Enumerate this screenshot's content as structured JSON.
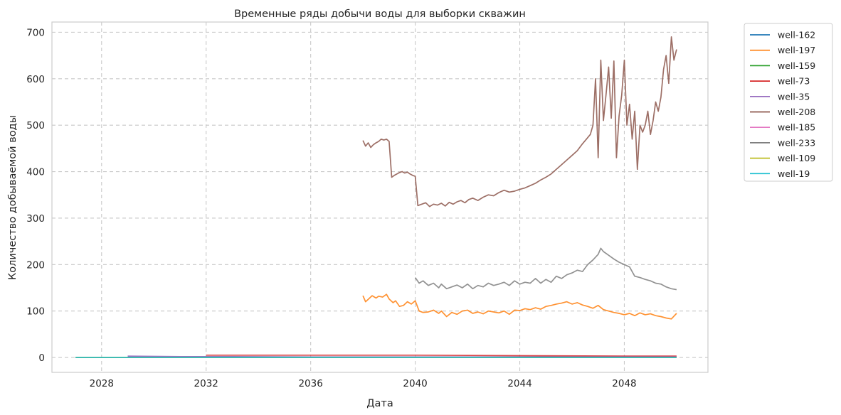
{
  "chart_data": {
    "type": "line",
    "title": "Временные ряды добычи воды для выборки скважин",
    "xlabel": "Дата",
    "ylabel": "Количество добываемой воды",
    "xlim": [
      2026.1,
      2051.2
    ],
    "ylim": [
      -32,
      722
    ],
    "x_ticks": [
      2028,
      2032,
      2036,
      2040,
      2044,
      2048
    ],
    "y_ticks": [
      0,
      100,
      200,
      300,
      400,
      500,
      600,
      700
    ],
    "grid": true,
    "legend_position": "outside-right",
    "series": [
      {
        "name": "well-162",
        "color": "#1f77b4",
        "x": [
          2029.0,
          2031.0,
          2033.0,
          2036.0,
          2040.0,
          2045.0,
          2050.0
        ],
        "y": [
          1,
          1,
          1,
          1,
          1,
          1,
          1
        ]
      },
      {
        "name": "well-197",
        "color": "#ff7f0e",
        "x": [
          2038.0,
          2038.1,
          2038.2,
          2038.35,
          2038.5,
          2038.6,
          2038.75,
          2038.9,
          2039.0,
          2039.15,
          2039.25,
          2039.4,
          2039.55,
          2039.7,
          2039.85,
          2040.0,
          2040.15,
          2040.3,
          2040.5,
          2040.7,
          2040.9,
          2041.0,
          2041.2,
          2041.4,
          2041.6,
          2041.8,
          2042.0,
          2042.2,
          2042.4,
          2042.6,
          2042.8,
          2043.0,
          2043.2,
          2043.4,
          2043.6,
          2043.8,
          2044.0,
          2044.2,
          2044.4,
          2044.6,
          2044.8,
          2045.0,
          2045.2,
          2045.4,
          2045.6,
          2045.8,
          2046.0,
          2046.2,
          2046.4,
          2046.6,
          2046.8,
          2047.0,
          2047.2,
          2047.4,
          2047.6,
          2047.8,
          2048.0,
          2048.2,
          2048.4,
          2048.6,
          2048.8,
          2049.0,
          2049.2,
          2049.4,
          2049.6,
          2049.8,
          2050.0
        ],
        "y": [
          133,
          120,
          125,
          133,
          128,
          132,
          130,
          136,
          126,
          118,
          122,
          110,
          112,
          120,
          115,
          122,
          100,
          97,
          98,
          102,
          95,
          100,
          88,
          97,
          93,
          100,
          102,
          95,
          98,
          94,
          100,
          98,
          96,
          100,
          93,
          102,
          101,
          105,
          103,
          107,
          104,
          110,
          112,
          115,
          117,
          120,
          115,
          118,
          113,
          110,
          106,
          112,
          103,
          100,
          97,
          95,
          92,
          95,
          90,
          96,
          92,
          94,
          90,
          88,
          85,
          83,
          95
        ]
      },
      {
        "name": "well-159",
        "color": "#2ca02c",
        "x": [
          2027.0,
          2030.0,
          2035.0,
          2040.0,
          2045.0,
          2050.0
        ],
        "y": [
          0,
          0,
          0,
          0,
          0,
          0
        ]
      },
      {
        "name": "well-73",
        "color": "#d62728",
        "x": [
          2032.0,
          2036.0,
          2040.0,
          2044.0,
          2048.0,
          2050.0
        ],
        "y": [
          5,
          5,
          5,
          4,
          3,
          3
        ]
      },
      {
        "name": "well-35",
        "color": "#9467bd",
        "x": [
          2029.0,
          2031.0,
          2033.0,
          2036.0,
          2040.0,
          2045.0,
          2050.0
        ],
        "y": [
          3,
          2,
          2,
          1,
          1,
          1,
          1
        ]
      },
      {
        "name": "well-208",
        "color": "#8c564b",
        "x": [
          2038.0,
          2038.1,
          2038.2,
          2038.3,
          2038.4,
          2038.5,
          2038.6,
          2038.7,
          2038.8,
          2038.9,
          2039.0,
          2039.1,
          2039.2,
          2039.3,
          2039.4,
          2039.5,
          2039.6,
          2039.7,
          2039.8,
          2039.9,
          2040.0,
          2040.1,
          2040.25,
          2040.4,
          2040.55,
          2040.7,
          2040.85,
          2041.0,
          2041.15,
          2041.3,
          2041.45,
          2041.6,
          2041.75,
          2041.9,
          2042.05,
          2042.2,
          2042.4,
          2042.6,
          2042.8,
          2043.0,
          2043.2,
          2043.4,
          2043.6,
          2043.8,
          2044.0,
          2044.2,
          2044.4,
          2044.6,
          2044.8,
          2045.0,
          2045.2,
          2045.4,
          2045.6,
          2045.8,
          2046.0,
          2046.2,
          2046.4,
          2046.55,
          2046.7,
          2046.8,
          2046.9,
          2047.0,
          2047.1,
          2047.2,
          2047.3,
          2047.4,
          2047.5,
          2047.6,
          2047.7,
          2047.8,
          2047.9,
          2048.0,
          2048.1,
          2048.2,
          2048.3,
          2048.4,
          2048.5,
          2048.6,
          2048.7,
          2048.8,
          2048.9,
          2049.0,
          2049.1,
          2049.2,
          2049.3,
          2049.4,
          2049.5,
          2049.6,
          2049.7,
          2049.8,
          2049.9,
          2050.0
        ],
        "y": [
          467,
          455,
          462,
          452,
          458,
          462,
          465,
          470,
          468,
          470,
          465,
          388,
          392,
          395,
          398,
          400,
          397,
          399,
          395,
          392,
          390,
          327,
          330,
          333,
          325,
          330,
          328,
          332,
          326,
          334,
          330,
          335,
          338,
          333,
          340,
          343,
          338,
          345,
          350,
          348,
          355,
          360,
          356,
          358,
          362,
          365,
          370,
          375,
          382,
          388,
          395,
          405,
          415,
          425,
          435,
          445,
          460,
          470,
          480,
          500,
          600,
          430,
          640,
          510,
          565,
          625,
          515,
          638,
          430,
          520,
          565,
          640,
          500,
          545,
          470,
          530,
          405,
          500,
          485,
          500,
          530,
          480,
          510,
          550,
          530,
          560,
          620,
          650,
          590,
          690,
          640,
          663
        ]
      },
      {
        "name": "well-185",
        "color": "#e377c2",
        "x": [
          2027.0,
          2030.0,
          2035.0,
          2040.0,
          2045.0,
          2050.0
        ],
        "y": [
          0,
          0,
          0,
          0,
          0,
          0
        ]
      },
      {
        "name": "well-233",
        "color": "#7f7f7f",
        "x": [
          2040.0,
          2040.15,
          2040.3,
          2040.5,
          2040.7,
          2040.9,
          2041.0,
          2041.2,
          2041.4,
          2041.6,
          2041.8,
          2042.0,
          2042.2,
          2042.4,
          2042.6,
          2042.8,
          2043.0,
          2043.2,
          2043.4,
          2043.6,
          2043.8,
          2044.0,
          2044.2,
          2044.4,
          2044.6,
          2044.8,
          2045.0,
          2045.2,
          2045.4,
          2045.6,
          2045.8,
          2046.0,
          2046.2,
          2046.4,
          2046.6,
          2046.8,
          2047.0,
          2047.1,
          2047.2,
          2047.4,
          2047.6,
          2047.8,
          2048.0,
          2048.2,
          2048.4,
          2048.6,
          2048.8,
          2049.0,
          2049.2,
          2049.4,
          2049.6,
          2049.8,
          2050.0
        ],
        "y": [
          172,
          160,
          165,
          155,
          160,
          150,
          158,
          148,
          152,
          156,
          150,
          158,
          148,
          155,
          152,
          160,
          155,
          158,
          162,
          155,
          165,
          158,
          162,
          160,
          170,
          160,
          168,
          162,
          175,
          170,
          178,
          182,
          188,
          185,
          200,
          210,
          222,
          235,
          228,
          220,
          212,
          205,
          200,
          195,
          175,
          172,
          168,
          165,
          160,
          158,
          152,
          148,
          146
        ]
      },
      {
        "name": "well-109",
        "color": "#bcbd22",
        "x": [
          2027.0,
          2030.0,
          2035.0,
          2040.0,
          2045.0,
          2050.0
        ],
        "y": [
          0,
          0,
          0,
          0,
          0,
          0
        ]
      },
      {
        "name": "well-19",
        "color": "#17becf",
        "x": [
          2027.0,
          2030.0,
          2035.0,
          2040.0,
          2045.0,
          2050.0
        ],
        "y": [
          0,
          0,
          0,
          0,
          0,
          0
        ]
      }
    ]
  }
}
